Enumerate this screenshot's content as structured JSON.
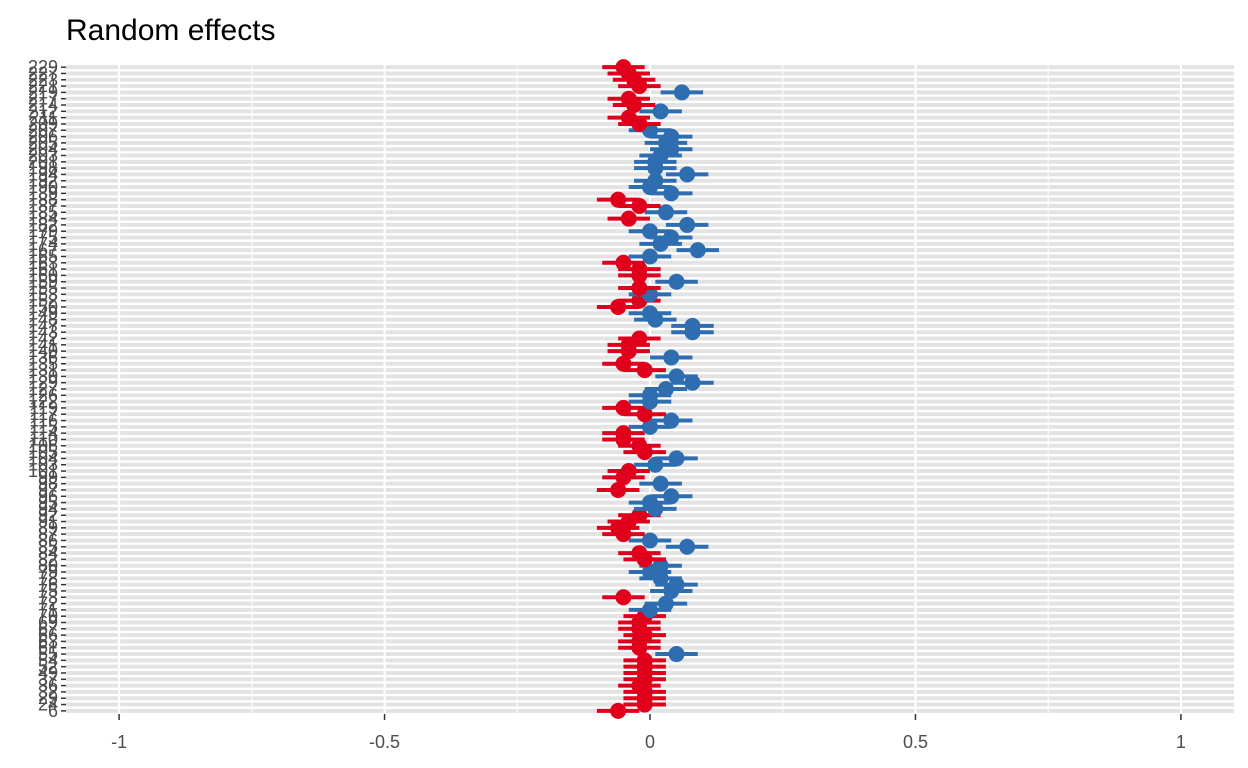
{
  "colors": {
    "negative": "#E0001B",
    "positive": "#2E6DB0",
    "background": "#FFFFFF",
    "gridline": "#E3E3E3",
    "gridline_vertical": "#FFFFFF",
    "tick_text": "#4D4D4D"
  },
  "chart_data": {
    "type": "scatter",
    "subtype": "forest-plot-with-error-bars",
    "title": "Random effects",
    "xlabel": "",
    "ylabel": "",
    "xlim": [
      -1.1,
      1.1
    ],
    "x_ticks": [
      -1,
      -0.5,
      0,
      0.5,
      1
    ],
    "x_tick_labels": [
      "-1",
      "-0.5",
      "0",
      "0.5",
      "1"
    ],
    "grid": true,
    "legend": "none",
    "points": [
      {
        "label": "229",
        "estimate": -0.05,
        "lower": -0.09,
        "upper": -0.01
      },
      {
        "label": "227",
        "estimate": -0.04,
        "lower": -0.08,
        "upper": 0.0
      },
      {
        "label": "223",
        "estimate": -0.03,
        "lower": -0.07,
        "upper": 0.01
      },
      {
        "label": "221",
        "estimate": -0.02,
        "lower": -0.06,
        "upper": 0.02
      },
      {
        "label": "219",
        "estimate": 0.06,
        "lower": 0.02,
        "upper": 0.1
      },
      {
        "label": "217",
        "estimate": -0.04,
        "lower": -0.08,
        "upper": 0.0
      },
      {
        "label": "214",
        "estimate": -0.03,
        "lower": -0.07,
        "upper": 0.01
      },
      {
        "label": "212",
        "estimate": 0.02,
        "lower": -0.02,
        "upper": 0.06
      },
      {
        "label": "211",
        "estimate": -0.04,
        "lower": -0.08,
        "upper": 0.0
      },
      {
        "label": "209",
        "estimate": -0.02,
        "lower": -0.06,
        "upper": 0.02
      },
      {
        "label": "207",
        "estimate": 0.0,
        "lower": -0.04,
        "upper": 0.04
      },
      {
        "label": "206",
        "estimate": 0.04,
        "lower": 0.0,
        "upper": 0.08
      },
      {
        "label": "205",
        "estimate": 0.03,
        "lower": -0.01,
        "upper": 0.07
      },
      {
        "label": "204",
        "estimate": 0.04,
        "lower": 0.0,
        "upper": 0.08
      },
      {
        "label": "203",
        "estimate": 0.02,
        "lower": -0.02,
        "upper": 0.06
      },
      {
        "label": "201",
        "estimate": 0.01,
        "lower": -0.03,
        "upper": 0.05
      },
      {
        "label": "198",
        "estimate": 0.01,
        "lower": -0.03,
        "upper": 0.05
      },
      {
        "label": "194",
        "estimate": 0.07,
        "lower": 0.03,
        "upper": 0.11
      },
      {
        "label": "192",
        "estimate": 0.01,
        "lower": -0.03,
        "upper": 0.05
      },
      {
        "label": "190",
        "estimate": 0.0,
        "lower": -0.04,
        "upper": 0.04
      },
      {
        "label": "189",
        "estimate": 0.04,
        "lower": 0.0,
        "upper": 0.08
      },
      {
        "label": "188",
        "estimate": -0.06,
        "lower": -0.1,
        "upper": -0.02
      },
      {
        "label": "187",
        "estimate": -0.02,
        "lower": -0.06,
        "upper": 0.02
      },
      {
        "label": "185",
        "estimate": 0.03,
        "lower": -0.01,
        "upper": 0.07
      },
      {
        "label": "184",
        "estimate": -0.04,
        "lower": -0.08,
        "upper": 0.0
      },
      {
        "label": "182",
        "estimate": 0.07,
        "lower": 0.03,
        "upper": 0.11
      },
      {
        "label": "179",
        "estimate": 0.0,
        "lower": -0.04,
        "upper": 0.04
      },
      {
        "label": "175",
        "estimate": 0.04,
        "lower": 0.0,
        "upper": 0.08
      },
      {
        "label": "174",
        "estimate": 0.02,
        "lower": -0.02,
        "upper": 0.06
      },
      {
        "label": "167",
        "estimate": 0.09,
        "lower": 0.05,
        "upper": 0.13
      },
      {
        "label": "165",
        "estimate": 0.0,
        "lower": -0.04,
        "upper": 0.04
      },
      {
        "label": "163",
        "estimate": -0.05,
        "lower": -0.09,
        "upper": -0.01
      },
      {
        "label": "161",
        "estimate": -0.02,
        "lower": -0.06,
        "upper": 0.02
      },
      {
        "label": "160",
        "estimate": -0.02,
        "lower": -0.06,
        "upper": 0.02
      },
      {
        "label": "159",
        "estimate": 0.05,
        "lower": 0.01,
        "upper": 0.09
      },
      {
        "label": "155",
        "estimate": -0.02,
        "lower": -0.06,
        "upper": 0.02
      },
      {
        "label": "153",
        "estimate": 0.0,
        "lower": -0.04,
        "upper": 0.04
      },
      {
        "label": "152",
        "estimate": -0.02,
        "lower": -0.06,
        "upper": 0.02
      },
      {
        "label": "150",
        "estimate": -0.06,
        "lower": -0.1,
        "upper": -0.02
      },
      {
        "label": "149",
        "estimate": 0.0,
        "lower": -0.04,
        "upper": 0.04
      },
      {
        "label": "148",
        "estimate": 0.01,
        "lower": -0.03,
        "upper": 0.05
      },
      {
        "label": "147",
        "estimate": 0.08,
        "lower": 0.04,
        "upper": 0.12
      },
      {
        "label": "143",
        "estimate": 0.08,
        "lower": 0.04,
        "upper": 0.12
      },
      {
        "label": "142",
        "estimate": -0.02,
        "lower": -0.06,
        "upper": 0.02
      },
      {
        "label": "141",
        "estimate": -0.04,
        "lower": -0.08,
        "upper": 0.0
      },
      {
        "label": "140",
        "estimate": -0.04,
        "lower": -0.08,
        "upper": 0.0
      },
      {
        "label": "136",
        "estimate": 0.04,
        "lower": 0.0,
        "upper": 0.08
      },
      {
        "label": "135",
        "estimate": -0.05,
        "lower": -0.09,
        "upper": -0.01
      },
      {
        "label": "131",
        "estimate": -0.01,
        "lower": -0.05,
        "upper": 0.03
      },
      {
        "label": "130",
        "estimate": 0.05,
        "lower": 0.01,
        "upper": 0.09
      },
      {
        "label": "129",
        "estimate": 0.08,
        "lower": 0.04,
        "upper": 0.12
      },
      {
        "label": "127",
        "estimate": 0.03,
        "lower": -0.01,
        "upper": 0.07
      },
      {
        "label": "126",
        "estimate": 0.0,
        "lower": -0.04,
        "upper": 0.04
      },
      {
        "label": "122",
        "estimate": 0.0,
        "lower": -0.04,
        "upper": 0.04
      },
      {
        "label": "119",
        "estimate": -0.05,
        "lower": -0.09,
        "upper": -0.01
      },
      {
        "label": "117",
        "estimate": -0.01,
        "lower": -0.05,
        "upper": 0.03
      },
      {
        "label": "116",
        "estimate": 0.04,
        "lower": 0.0,
        "upper": 0.08
      },
      {
        "label": "115",
        "estimate": 0.0,
        "lower": -0.04,
        "upper": 0.04
      },
      {
        "label": "114",
        "estimate": -0.05,
        "lower": -0.09,
        "upper": -0.01
      },
      {
        "label": "110",
        "estimate": -0.05,
        "lower": -0.09,
        "upper": -0.01
      },
      {
        "label": "106",
        "estimate": -0.02,
        "lower": -0.06,
        "upper": 0.02
      },
      {
        "label": "105",
        "estimate": -0.01,
        "lower": -0.05,
        "upper": 0.03
      },
      {
        "label": "104",
        "estimate": 0.05,
        "lower": 0.01,
        "upper": 0.09
      },
      {
        "label": "103",
        "estimate": 0.01,
        "lower": -0.03,
        "upper": 0.05
      },
      {
        "label": "101",
        "estimate": -0.04,
        "lower": -0.08,
        "upper": 0.0
      },
      {
        "label": "99",
        "estimate": -0.05,
        "lower": -0.09,
        "upper": -0.01
      },
      {
        "label": "98",
        "estimate": 0.02,
        "lower": -0.02,
        "upper": 0.06
      },
      {
        "label": "97",
        "estimate": -0.06,
        "lower": -0.1,
        "upper": -0.02
      },
      {
        "label": "96",
        "estimate": 0.04,
        "lower": 0.0,
        "upper": 0.08
      },
      {
        "label": "95",
        "estimate": 0.0,
        "lower": -0.04,
        "upper": 0.04
      },
      {
        "label": "94",
        "estimate": 0.01,
        "lower": -0.03,
        "upper": 0.05
      },
      {
        "label": "92",
        "estimate": -0.02,
        "lower": -0.06,
        "upper": 0.02
      },
      {
        "label": "91",
        "estimate": -0.04,
        "lower": -0.08,
        "upper": 0.0
      },
      {
        "label": "89",
        "estimate": -0.06,
        "lower": -0.1,
        "upper": -0.02
      },
      {
        "label": "87",
        "estimate": -0.05,
        "lower": -0.09,
        "upper": -0.01
      },
      {
        "label": "86",
        "estimate": 0.0,
        "lower": -0.04,
        "upper": 0.04
      },
      {
        "label": "85",
        "estimate": 0.07,
        "lower": 0.03,
        "upper": 0.11
      },
      {
        "label": "84",
        "estimate": -0.02,
        "lower": -0.06,
        "upper": 0.02
      },
      {
        "label": "82",
        "estimate": -0.01,
        "lower": -0.05,
        "upper": 0.03
      },
      {
        "label": "80",
        "estimate": 0.02,
        "lower": -0.02,
        "upper": 0.06
      },
      {
        "label": "79",
        "estimate": 0.0,
        "lower": -0.04,
        "upper": 0.04
      },
      {
        "label": "78",
        "estimate": 0.02,
        "lower": -0.02,
        "upper": 0.06
      },
      {
        "label": "76",
        "estimate": 0.05,
        "lower": 0.01,
        "upper": 0.09
      },
      {
        "label": "75",
        "estimate": 0.04,
        "lower": 0.0,
        "upper": 0.08
      },
      {
        "label": "73",
        "estimate": -0.05,
        "lower": -0.09,
        "upper": -0.01
      },
      {
        "label": "72",
        "estimate": 0.03,
        "lower": -0.01,
        "upper": 0.07
      },
      {
        "label": "71",
        "estimate": 0.0,
        "lower": -0.04,
        "upper": 0.04
      },
      {
        "label": "70",
        "estimate": -0.01,
        "lower": -0.05,
        "upper": 0.03
      },
      {
        "label": "69",
        "estimate": -0.02,
        "lower": -0.06,
        "upper": 0.02
      },
      {
        "label": "67",
        "estimate": -0.02,
        "lower": -0.06,
        "upper": 0.02
      },
      {
        "label": "66",
        "estimate": -0.01,
        "lower": -0.05,
        "upper": 0.03
      },
      {
        "label": "63",
        "estimate": -0.02,
        "lower": -0.06,
        "upper": 0.02
      },
      {
        "label": "61",
        "estimate": -0.02,
        "lower": -0.06,
        "upper": 0.02
      },
      {
        "label": "55",
        "estimate": 0.05,
        "lower": 0.01,
        "upper": 0.09
      },
      {
        "label": "54",
        "estimate": -0.01,
        "lower": -0.05,
        "upper": 0.03
      },
      {
        "label": "52",
        "estimate": -0.01,
        "lower": -0.05,
        "upper": 0.03
      },
      {
        "label": "49",
        "estimate": -0.01,
        "lower": -0.05,
        "upper": 0.03
      },
      {
        "label": "37",
        "estimate": -0.01,
        "lower": -0.05,
        "upper": 0.03
      },
      {
        "label": "36",
        "estimate": -0.02,
        "lower": -0.06,
        "upper": 0.02
      },
      {
        "label": "32",
        "estimate": -0.01,
        "lower": -0.05,
        "upper": 0.03
      },
      {
        "label": "29",
        "estimate": -0.01,
        "lower": -0.05,
        "upper": 0.03
      },
      {
        "label": "24",
        "estimate": -0.01,
        "lower": -0.05,
        "upper": 0.03
      },
      {
        "label": "6",
        "estimate": -0.06,
        "lower": -0.1,
        "upper": -0.02
      }
    ]
  }
}
